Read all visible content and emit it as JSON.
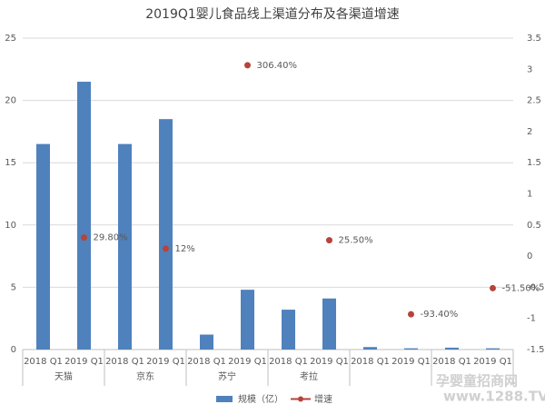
{
  "chart_data": {
    "type": "bar_line",
    "title": "2019Q1婴儿食品线上渠道分布及各渠道增速",
    "categories": [
      "2018 Q1",
      "2019 Q1",
      "2018 Q1",
      "2019 Q1",
      "2018 Q1",
      "2019 Q1",
      "2018 Q1",
      "2019 Q1",
      "2018 Q1",
      "2019 Q1",
      "2018 Q1",
      "2019 Q1"
    ],
    "groups": [
      "天猫",
      "京东",
      "苏宁",
      "考拉",
      null,
      null
    ],
    "series": [
      {
        "name": "规模（亿）",
        "color": "#4f81bd",
        "kind": "bar",
        "axis": "y",
        "values": [
          16.5,
          21.5,
          16.5,
          18.5,
          1.2,
          4.8,
          3.2,
          4.1,
          0.2,
          0.1,
          0.15,
          0.1
        ]
      },
      {
        "name": "增速",
        "color": "#b5443a",
        "kind": "point",
        "axis": "y2",
        "values": [
          null,
          0.298,
          null,
          0.12,
          null,
          3.064,
          null,
          0.255,
          null,
          -0.934,
          null,
          -0.515
        ],
        "value_labels": [
          null,
          "29.80%",
          null,
          "12%",
          null,
          "306.40%",
          null,
          "25.50%",
          null,
          "-93.40%",
          null,
          "-51.50%"
        ]
      }
    ],
    "ylim": [
      0,
      25
    ],
    "yticks": [
      0,
      5,
      10,
      15,
      20,
      25
    ],
    "y2lim": [
      -1.5,
      3.5
    ],
    "y2ticks": [
      -1.5,
      -1,
      -0.5,
      0,
      0.5,
      1,
      1.5,
      2,
      2.5,
      3,
      3.5
    ],
    "grid": true,
    "legend": "bottom",
    "watermark": [
      "孕婴童招商网",
      "www.1288.TV"
    ]
  }
}
